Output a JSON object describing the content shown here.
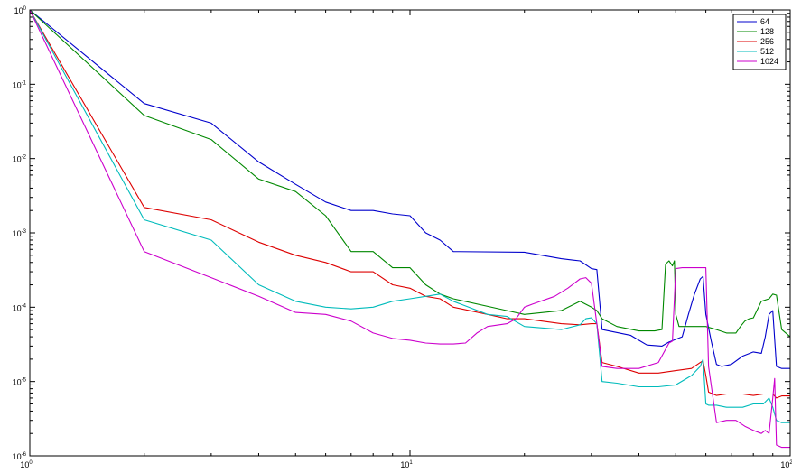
{
  "chart_data": {
    "type": "line",
    "title": "",
    "xlabel": "",
    "ylabel": "",
    "x_scale": "log",
    "y_scale": "log",
    "xlim": [
      1,
      100
    ],
    "ylim": [
      1e-06,
      1
    ],
    "grid": false,
    "legend_placement": "top-right",
    "x_ticks": [
      {
        "base": "10",
        "exp": "0",
        "value": 1
      },
      {
        "base": "10",
        "exp": "1",
        "value": 10
      },
      {
        "base": "10",
        "exp": "2",
        "value": 100
      }
    ],
    "y_ticks": [
      {
        "base": "10",
        "exp": "0",
        "value": 1
      },
      {
        "base": "10",
        "exp": "-1",
        "value": 0.1
      },
      {
        "base": "10",
        "exp": "-2",
        "value": 0.01
      },
      {
        "base": "10",
        "exp": "-3",
        "value": 0.001
      },
      {
        "base": "10",
        "exp": "-4",
        "value": 0.0001
      },
      {
        "base": "10",
        "exp": "-5",
        "value": 1e-05
      },
      {
        "base": "10",
        "exp": "-6",
        "value": 1e-06
      }
    ],
    "series": [
      {
        "name": "64",
        "color": "#0000cc",
        "x": [
          1,
          2,
          3,
          4,
          5,
          6,
          7,
          8,
          9,
          10,
          11,
          12,
          13,
          20,
          25,
          28,
          30,
          31,
          32,
          38,
          42,
          46,
          48,
          52,
          54,
          56,
          58,
          59,
          60,
          62,
          64,
          66,
          70,
          75,
          80,
          84,
          86,
          88,
          90,
          92,
          95,
          100
        ],
        "y": [
          1,
          0.055,
          0.03,
          0.009,
          0.0045,
          0.0026,
          0.002,
          0.002,
          0.0018,
          0.0017,
          0.001,
          0.0008,
          0.00056,
          0.00055,
          0.00045,
          0.00042,
          0.00033,
          0.00032,
          5e-05,
          4.2e-05,
          3.1e-05,
          3e-05,
          3.4e-05,
          4e-05,
          8e-05,
          0.00015,
          0.00024,
          0.00026,
          8e-05,
          3.5e-05,
          1.7e-05,
          1.6e-05,
          1.7e-05,
          2.2e-05,
          2.5e-05,
          2.4e-05,
          4e-05,
          8e-05,
          9e-05,
          1.6e-05,
          1.5e-05,
          1.5e-05
        ]
      },
      {
        "name": "128",
        "color": "#008800",
        "x": [
          1,
          2,
          3,
          4,
          5,
          6,
          7,
          8,
          9,
          10,
          11,
          12,
          13,
          18,
          20,
          25,
          28,
          30,
          31,
          32,
          35,
          40,
          44,
          46,
          47,
          48,
          49,
          49.6,
          50,
          51,
          60,
          64,
          68,
          72,
          74,
          76,
          78,
          80,
          84,
          88,
          90,
          92,
          95,
          100
        ],
        "y": [
          1,
          0.038,
          0.018,
          0.0053,
          0.0036,
          0.0017,
          0.00056,
          0.00056,
          0.00034,
          0.00034,
          0.0002,
          0.00015,
          0.00013,
          9e-05,
          8e-05,
          9e-05,
          0.00012,
          0.0001,
          9e-05,
          7e-05,
          5.5e-05,
          4.8e-05,
          4.8e-05,
          5e-05,
          0.00038,
          0.00042,
          0.00036,
          0.00042,
          8e-05,
          5.5e-05,
          5.5e-05,
          5e-05,
          4.5e-05,
          4.5e-05,
          5.5e-05,
          6.5e-05,
          7e-05,
          7.2e-05,
          0.00012,
          0.00013,
          0.00015,
          0.000145,
          5e-05,
          4e-05
        ]
      },
      {
        "name": "256",
        "color": "#dd0000",
        "x": [
          1,
          2,
          3,
          4,
          5,
          6,
          7,
          8,
          9,
          10,
          11,
          12,
          13,
          16,
          18,
          20,
          25,
          28,
          30,
          31,
          32,
          35,
          40,
          45,
          50,
          55,
          58,
          59,
          60,
          61,
          64,
          68,
          75,
          80,
          85,
          90,
          92,
          95,
          100
        ],
        "y": [
          1,
          0.0022,
          0.0015,
          0.00075,
          0.0005,
          0.0004,
          0.0003,
          0.0003,
          0.0002,
          0.00018,
          0.00014,
          0.00013,
          0.0001,
          8e-05,
          7e-05,
          7e-05,
          6e-05,
          5.8e-05,
          6e-05,
          6e-05,
          1.8e-05,
          1.6e-05,
          1.3e-05,
          1.3e-05,
          1.4e-05,
          1.5e-05,
          1.8e-05,
          1.9e-05,
          1.2e-05,
          7.2e-06,
          6.5e-06,
          6.8e-06,
          6.8e-06,
          6.5e-06,
          6.8e-06,
          6.8e-06,
          6e-06,
          6.4e-06,
          6.4e-06
        ]
      },
      {
        "name": "512",
        "color": "#00bbbb",
        "x": [
          1,
          2,
          3,
          4,
          5,
          6,
          7,
          8,
          9,
          10,
          11,
          12,
          13,
          16,
          18,
          20,
          25,
          28,
          29,
          30,
          31,
          32,
          35,
          40,
          45,
          50,
          55,
          58,
          59,
          60,
          61,
          64,
          68,
          75,
          80,
          85,
          88,
          90,
          92,
          95,
          100
        ],
        "y": [
          1,
          0.0015,
          0.0008,
          0.0002,
          0.00012,
          0.0001,
          9.5e-05,
          0.0001,
          0.00012,
          0.00013,
          0.00014,
          0.00015,
          0.00012,
          8e-05,
          7.5e-05,
          5.5e-05,
          5e-05,
          5.8e-05,
          7e-05,
          7.2e-05,
          6e-05,
          1e-05,
          9.5e-06,
          8.5e-06,
          8.5e-06,
          9e-06,
          1.2e-05,
          1.6e-05,
          2e-05,
          5e-06,
          4.8e-06,
          4.8e-06,
          4.5e-06,
          4.5e-06,
          5e-06,
          5e-06,
          6e-06,
          4.5e-06,
          3e-06,
          2.8e-06,
          2.8e-06
        ]
      },
      {
        "name": "1024",
        "color": "#cc00cc",
        "x": [
          1,
          2,
          3,
          4,
          5,
          6,
          7,
          8,
          9,
          10,
          11,
          12,
          13,
          14,
          15,
          16,
          18,
          19,
          20,
          21,
          24,
          26,
          28,
          29,
          30,
          31,
          32,
          35,
          40,
          45,
          48,
          49,
          50,
          52,
          54,
          56,
          58,
          60,
          61,
          64,
          68,
          72,
          76,
          80,
          84,
          86,
          88,
          90,
          91,
          92,
          95,
          100
        ],
        "y": [
          1,
          0.00056,
          0.00025,
          0.00014,
          8.5e-05,
          8e-05,
          6.5e-05,
          4.5e-05,
          3.8e-05,
          3.6e-05,
          3.3e-05,
          3.2e-05,
          3.2e-05,
          3.3e-05,
          4.5e-05,
          5.5e-05,
          6e-05,
          7e-05,
          0.0001,
          0.00011,
          0.00014,
          0.00018,
          0.00024,
          0.00025,
          0.00021,
          6e-05,
          1.6e-05,
          1.5e-05,
          1.5e-05,
          1.8e-05,
          3.3e-05,
          3.5e-05,
          0.00033,
          0.00034,
          0.00034,
          0.00034,
          0.00034,
          0.00034,
          1.6e-05,
          2.8e-06,
          3e-06,
          3e-06,
          2.5e-06,
          2.2e-06,
          2e-06,
          2.2e-06,
          2e-06,
          6e-06,
          1.1e-05,
          1.4e-06,
          1.3e-06,
          1.3e-06
        ]
      }
    ]
  }
}
